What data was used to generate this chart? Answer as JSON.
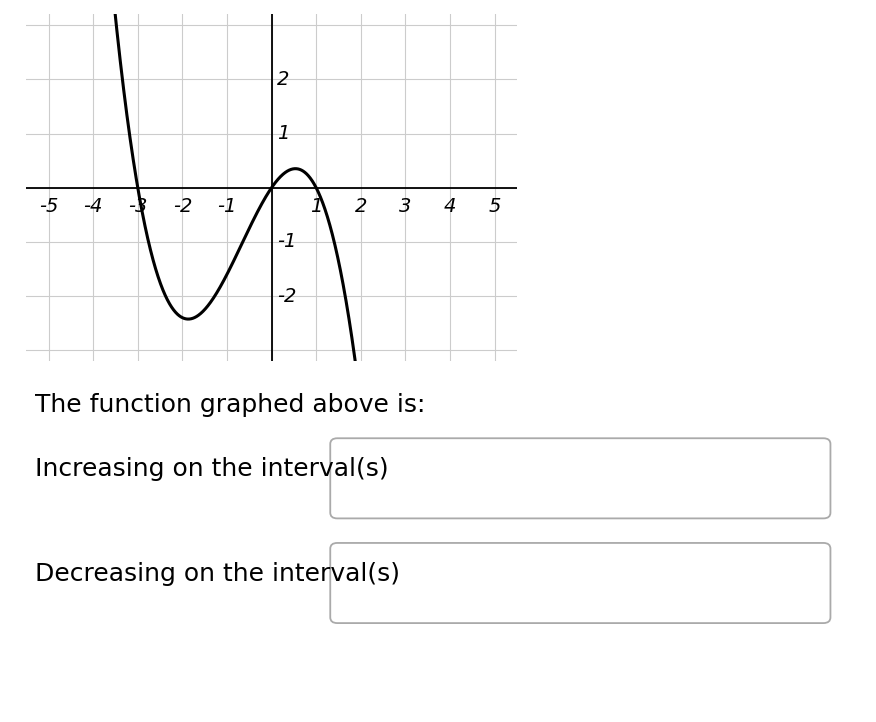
{
  "xlim": [
    -5.5,
    5.5
  ],
  "ylim": [
    -3.2,
    3.2
  ],
  "xticks": [
    -5,
    -4,
    -3,
    -2,
    -1,
    1,
    2,
    3,
    4,
    5
  ],
  "yticks": [
    -2,
    -1,
    1,
    2
  ],
  "grid_color": "#cccccc",
  "curve_color": "#000000",
  "curve_linewidth": 2.2,
  "background_color": "#ffffff",
  "text_color": "#000000",
  "tick_fontsize": 14,
  "label_fontsize": 18,
  "title_text": "The function graphed above is:",
  "increasing_label": "Increasing on the interval(s)",
  "decreasing_label": "Decreasing on the interval(s)",
  "zero1": -3,
  "zero2": 0,
  "zero3": 1,
  "scale": -0.4
}
